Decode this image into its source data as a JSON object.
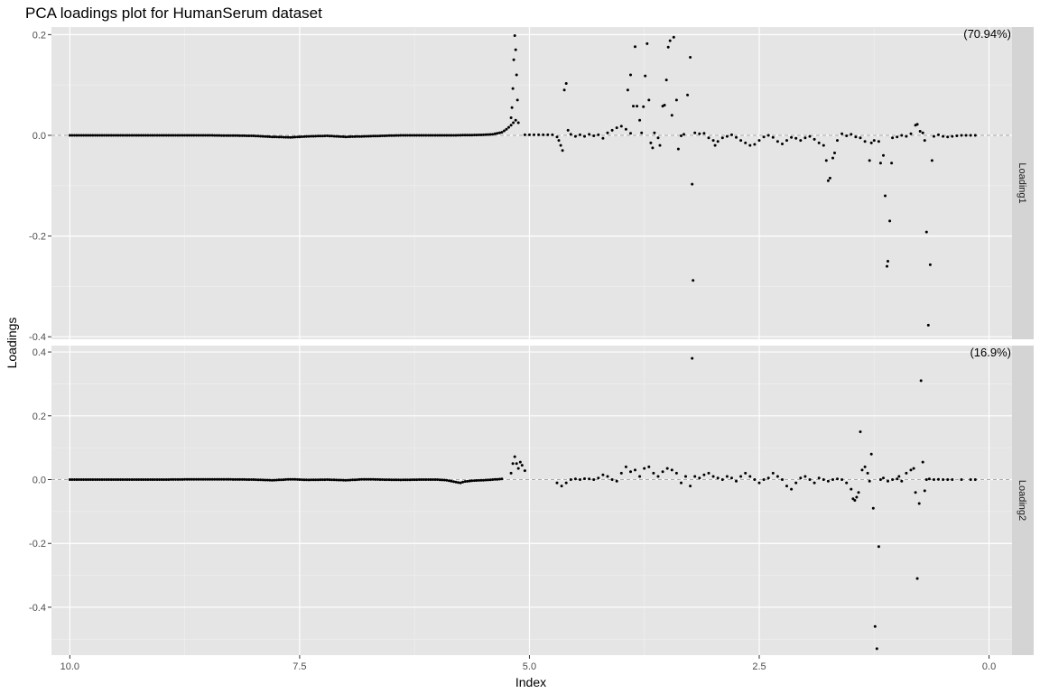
{
  "chart_data": {
    "type": "scatter",
    "title": "PCA loadings plot for HumanSerum dataset",
    "xlabel": "Index",
    "ylabel": "Loadings",
    "x_reversed": true,
    "xlim": [
      10.2,
      -0.25
    ],
    "x_ticks": [
      10.0,
      7.5,
      5.0,
      2.5,
      0.0
    ],
    "x_tick_labels": [
      "10.0",
      "7.5",
      "5.0",
      "2.5",
      "0.0"
    ],
    "grid": true,
    "zero_reference_line": "dashed",
    "facets": [
      {
        "strip_label": "Loading1",
        "variance_label": "(70.94%)",
        "ylim": [
          -0.405,
          0.215
        ],
        "y_ticks": [
          0.2,
          0.0,
          -0.2,
          -0.4
        ],
        "y_tick_labels": [
          "0.2",
          "0.0",
          "-0.2",
          "-0.4"
        ],
        "points": [
          [
            5.05,
            0.001
          ],
          [
            5.0,
            0.001
          ],
          [
            4.95,
            0.001
          ],
          [
            4.9,
            0.001
          ],
          [
            4.85,
            0.001
          ],
          [
            4.8,
            0.001
          ],
          [
            4.75,
            0.001
          ],
          [
            4.7,
            -0.003
          ],
          [
            4.68,
            -0.01
          ],
          [
            4.66,
            -0.02
          ],
          [
            4.64,
            -0.03
          ],
          [
            4.62,
            0.09
          ],
          [
            4.6,
            0.103
          ],
          [
            4.58,
            0.01
          ],
          [
            4.55,
            0.002
          ],
          [
            4.5,
            -0.002
          ],
          [
            4.45,
            0.001
          ],
          [
            4.4,
            -0.002
          ],
          [
            4.35,
            0.002
          ],
          [
            4.3,
            -0.001
          ],
          [
            4.25,
            0.001
          ],
          [
            4.2,
            -0.006
          ],
          [
            4.15,
            0.005
          ],
          [
            4.1,
            0.01
          ],
          [
            4.05,
            0.015
          ],
          [
            4.0,
            0.018
          ],
          [
            3.95,
            0.012
          ],
          [
            3.9,
            0.004
          ],
          [
            3.93,
            0.09
          ],
          [
            3.9,
            0.12
          ],
          [
            3.87,
            0.058
          ],
          [
            3.85,
            0.176
          ],
          [
            3.83,
            0.058
          ],
          [
            3.8,
            0.03
          ],
          [
            3.78,
            0.005
          ],
          [
            3.76,
            0.057
          ],
          [
            3.74,
            0.118
          ],
          [
            3.72,
            0.182
          ],
          [
            3.7,
            0.07
          ],
          [
            3.68,
            -0.015
          ],
          [
            3.66,
            -0.025
          ],
          [
            3.64,
            0.005
          ],
          [
            3.6,
            -0.005
          ],
          [
            3.58,
            -0.02
          ],
          [
            3.55,
            0.058
          ],
          [
            3.53,
            0.06
          ],
          [
            3.51,
            0.11
          ],
          [
            3.49,
            0.175
          ],
          [
            3.47,
            0.188
          ],
          [
            3.45,
            0.04
          ],
          [
            3.43,
            0.195
          ],
          [
            3.4,
            0.07
          ],
          [
            3.38,
            -0.027
          ],
          [
            3.35,
            -0.001
          ],
          [
            3.32,
            0.002
          ],
          [
            3.28,
            0.08
          ],
          [
            3.25,
            0.155
          ],
          [
            3.23,
            -0.097
          ],
          [
            3.22,
            -0.288
          ],
          [
            3.2,
            0.005
          ],
          [
            3.15,
            0.003
          ],
          [
            3.1,
            0.004
          ],
          [
            3.05,
            -0.005
          ],
          [
            3.0,
            -0.01
          ],
          [
            2.98,
            -0.02
          ],
          [
            2.95,
            -0.012
          ],
          [
            2.9,
            -0.005
          ],
          [
            2.85,
            -0.002
          ],
          [
            2.8,
            0.001
          ],
          [
            2.75,
            -0.004
          ],
          [
            2.7,
            -0.01
          ],
          [
            2.65,
            -0.015
          ],
          [
            2.6,
            -0.02
          ],
          [
            2.55,
            -0.018
          ],
          [
            2.5,
            -0.01
          ],
          [
            2.45,
            -0.003
          ],
          [
            2.4,
            0.0
          ],
          [
            2.35,
            -0.004
          ],
          [
            2.3,
            -0.012
          ],
          [
            2.25,
            -0.017
          ],
          [
            2.2,
            -0.01
          ],
          [
            2.15,
            -0.004
          ],
          [
            2.1,
            -0.006
          ],
          [
            2.05,
            -0.01
          ],
          [
            2.0,
            -0.005
          ],
          [
            1.95,
            -0.002
          ],
          [
            1.9,
            -0.008
          ],
          [
            1.85,
            -0.015
          ],
          [
            1.8,
            -0.02
          ],
          [
            1.77,
            -0.05
          ],
          [
            1.75,
            -0.09
          ],
          [
            1.73,
            -0.085
          ],
          [
            1.7,
            -0.045
          ],
          [
            1.68,
            -0.035
          ],
          [
            1.65,
            -0.01
          ],
          [
            1.6,
            0.003
          ],
          [
            1.55,
            -0.001
          ],
          [
            1.5,
            0.002
          ],
          [
            1.45,
            -0.003
          ],
          [
            1.4,
            -0.005
          ],
          [
            1.35,
            -0.012
          ],
          [
            1.3,
            -0.05
          ],
          [
            1.28,
            -0.015
          ],
          [
            1.25,
            -0.01
          ],
          [
            1.2,
            -0.012
          ],
          [
            1.18,
            -0.055
          ],
          [
            1.15,
            -0.04
          ],
          [
            1.13,
            -0.12
          ],
          [
            1.11,
            -0.26
          ],
          [
            1.1,
            -0.25
          ],
          [
            1.08,
            -0.17
          ],
          [
            1.06,
            -0.055
          ],
          [
            1.05,
            -0.005
          ],
          [
            1.0,
            -0.003
          ],
          [
            0.95,
            0.0
          ],
          [
            0.9,
            -0.002
          ],
          [
            0.85,
            0.003
          ],
          [
            0.8,
            0.02
          ],
          [
            0.78,
            0.022
          ],
          [
            0.75,
            0.008
          ],
          [
            0.72,
            0.005
          ],
          [
            0.7,
            -0.01
          ],
          [
            0.68,
            -0.192
          ],
          [
            0.66,
            -0.377
          ],
          [
            0.64,
            -0.257
          ],
          [
            0.62,
            -0.05
          ],
          [
            0.6,
            -0.002
          ],
          [
            0.55,
            0.001
          ],
          [
            0.5,
            -0.002
          ],
          [
            0.45,
            -0.003
          ],
          [
            0.4,
            -0.002
          ],
          [
            0.35,
            -0.001
          ],
          [
            0.3,
            0.0
          ],
          [
            0.25,
            0.0
          ],
          [
            0.2,
            0.0
          ],
          [
            0.15,
            0.0
          ]
        ],
        "background_series": [
          [
            10.0,
            0.0
          ],
          [
            9.5,
            0.0
          ],
          [
            9.0,
            0.0
          ],
          [
            8.5,
            0.0
          ],
          [
            8.0,
            -0.001
          ],
          [
            7.8,
            -0.003
          ],
          [
            7.6,
            -0.004
          ],
          [
            7.4,
            -0.002
          ],
          [
            7.2,
            -0.001
          ],
          [
            7.0,
            -0.003
          ],
          [
            6.8,
            -0.002
          ],
          [
            6.6,
            -0.001
          ],
          [
            6.4,
            0.0
          ],
          [
            6.2,
            0.0
          ],
          [
            6.0,
            0.0
          ],
          [
            5.8,
            0.0
          ],
          [
            5.5,
            0.001
          ],
          [
            5.4,
            0.002
          ],
          [
            5.3,
            0.006
          ],
          [
            5.25,
            0.012
          ],
          [
            5.2,
            0.02
          ],
          [
            5.15,
            0.03
          ]
        ],
        "peak_points": [
          [
            5.2,
            0.035
          ],
          [
            5.19,
            0.055
          ],
          [
            5.18,
            0.093
          ],
          [
            5.17,
            0.15
          ],
          [
            5.16,
            0.198
          ],
          [
            5.15,
            0.17
          ],
          [
            5.14,
            0.12
          ],
          [
            5.13,
            0.07
          ],
          [
            5.12,
            0.025
          ]
        ]
      },
      {
        "strip_label": "Loading2",
        "variance_label": "(16.9%)",
        "ylim": [
          -0.55,
          0.42
        ],
        "y_ticks": [
          0.4,
          0.2,
          0.0,
          -0.2,
          -0.4
        ],
        "y_tick_labels": [
          "0.4",
          "0.2",
          "0.0",
          "-0.2",
          "-0.4"
        ],
        "points": [
          [
            5.2,
            0.02
          ],
          [
            5.18,
            0.05
          ],
          [
            5.16,
            0.072
          ],
          [
            5.14,
            0.05
          ],
          [
            5.12,
            0.035
          ],
          [
            5.1,
            0.055
          ],
          [
            5.08,
            0.045
          ],
          [
            5.05,
            0.028
          ],
          [
            4.7,
            -0.01
          ],
          [
            4.65,
            -0.02
          ],
          [
            4.6,
            -0.01
          ],
          [
            4.55,
            0.0
          ],
          [
            4.5,
            0.002
          ],
          [
            4.45,
            0.0
          ],
          [
            4.4,
            0.003
          ],
          [
            4.35,
            0.002
          ],
          [
            4.3,
            0.0
          ],
          [
            4.25,
            0.005
          ],
          [
            4.2,
            0.015
          ],
          [
            4.15,
            0.01
          ],
          [
            4.1,
            0.0
          ],
          [
            4.05,
            -0.005
          ],
          [
            4.0,
            0.02
          ],
          [
            3.95,
            0.04
          ],
          [
            3.9,
            0.025
          ],
          [
            3.85,
            0.03
          ],
          [
            3.8,
            0.01
          ],
          [
            3.75,
            0.035
          ],
          [
            3.7,
            0.04
          ],
          [
            3.65,
            0.02
          ],
          [
            3.6,
            0.01
          ],
          [
            3.55,
            0.025
          ],
          [
            3.5,
            0.035
          ],
          [
            3.45,
            0.03
          ],
          [
            3.4,
            0.02
          ],
          [
            3.35,
            -0.01
          ],
          [
            3.3,
            0.01
          ],
          [
            3.25,
            -0.02
          ],
          [
            3.23,
            0.38
          ],
          [
            3.2,
            0.01
          ],
          [
            3.15,
            0.005
          ],
          [
            3.1,
            0.015
          ],
          [
            3.05,
            0.02
          ],
          [
            3.0,
            0.01
          ],
          [
            2.95,
            0.005
          ],
          [
            2.9,
            0.0
          ],
          [
            2.85,
            0.01
          ],
          [
            2.8,
            0.005
          ],
          [
            2.75,
            -0.005
          ],
          [
            2.7,
            0.01
          ],
          [
            2.65,
            0.02
          ],
          [
            2.6,
            0.01
          ],
          [
            2.55,
            0.0
          ],
          [
            2.5,
            -0.01
          ],
          [
            2.45,
            0.0
          ],
          [
            2.4,
            0.005
          ],
          [
            2.35,
            0.02
          ],
          [
            2.3,
            0.01
          ],
          [
            2.25,
            0.0
          ],
          [
            2.2,
            -0.02
          ],
          [
            2.15,
            -0.03
          ],
          [
            2.1,
            -0.01
          ],
          [
            2.05,
            0.005
          ],
          [
            2.0,
            0.01
          ],
          [
            1.95,
            0.0
          ],
          [
            1.9,
            -0.01
          ],
          [
            1.85,
            0.005
          ],
          [
            1.8,
            0.0
          ],
          [
            1.75,
            -0.005
          ],
          [
            1.7,
            0.0
          ],
          [
            1.65,
            0.002
          ],
          [
            1.6,
            0.0
          ],
          [
            1.55,
            -0.01
          ],
          [
            1.5,
            -0.03
          ],
          [
            1.48,
            -0.06
          ],
          [
            1.46,
            -0.065
          ],
          [
            1.44,
            -0.055
          ],
          [
            1.42,
            -0.04
          ],
          [
            1.4,
            0.15
          ],
          [
            1.38,
            0.03
          ],
          [
            1.35,
            0.04
          ],
          [
            1.32,
            0.02
          ],
          [
            1.3,
            -0.005
          ],
          [
            1.28,
            0.08
          ],
          [
            1.26,
            -0.09
          ],
          [
            1.24,
            -0.46
          ],
          [
            1.22,
            -0.53
          ],
          [
            1.2,
            -0.21
          ],
          [
            1.18,
            0.0
          ],
          [
            1.15,
            0.005
          ],
          [
            1.1,
            -0.005
          ],
          [
            1.05,
            0.0
          ],
          [
            1.0,
            0.002
          ],
          [
            0.98,
            0.01
          ],
          [
            0.95,
            -0.005
          ],
          [
            0.9,
            0.02
          ],
          [
            0.85,
            0.03
          ],
          [
            0.82,
            0.035
          ],
          [
            0.8,
            -0.04
          ],
          [
            0.78,
            -0.31
          ],
          [
            0.76,
            -0.075
          ],
          [
            0.74,
            0.31
          ],
          [
            0.72,
            0.055
          ],
          [
            0.7,
            -0.035
          ],
          [
            0.68,
            0.0
          ],
          [
            0.65,
            0.002
          ],
          [
            0.6,
            0.0
          ],
          [
            0.55,
            0.001
          ],
          [
            0.5,
            0.0
          ],
          [
            0.45,
            0.0
          ],
          [
            0.4,
            0.0
          ],
          [
            0.3,
            0.0
          ],
          [
            0.2,
            0.0
          ],
          [
            0.15,
            0.0
          ]
        ],
        "background_series": [
          [
            10.0,
            0.0
          ],
          [
            9.5,
            0.0
          ],
          [
            9.0,
            0.0
          ],
          [
            8.5,
            0.001
          ],
          [
            8.0,
            0.0
          ],
          [
            7.8,
            -0.002
          ],
          [
            7.6,
            0.001
          ],
          [
            7.4,
            -0.001
          ],
          [
            7.2,
            0.0
          ],
          [
            7.0,
            -0.002
          ],
          [
            6.8,
            0.001
          ],
          [
            6.6,
            0.0
          ],
          [
            6.4,
            -0.001
          ],
          [
            6.2,
            0.0
          ],
          [
            6.0,
            0.0
          ],
          [
            5.9,
            -0.002
          ],
          [
            5.8,
            -0.008
          ],
          [
            5.75,
            -0.01
          ],
          [
            5.7,
            -0.006
          ],
          [
            5.6,
            -0.003
          ],
          [
            5.5,
            -0.002
          ],
          [
            5.4,
            0.0
          ],
          [
            5.3,
            0.002
          ]
        ],
        "peak_points": []
      }
    ]
  }
}
